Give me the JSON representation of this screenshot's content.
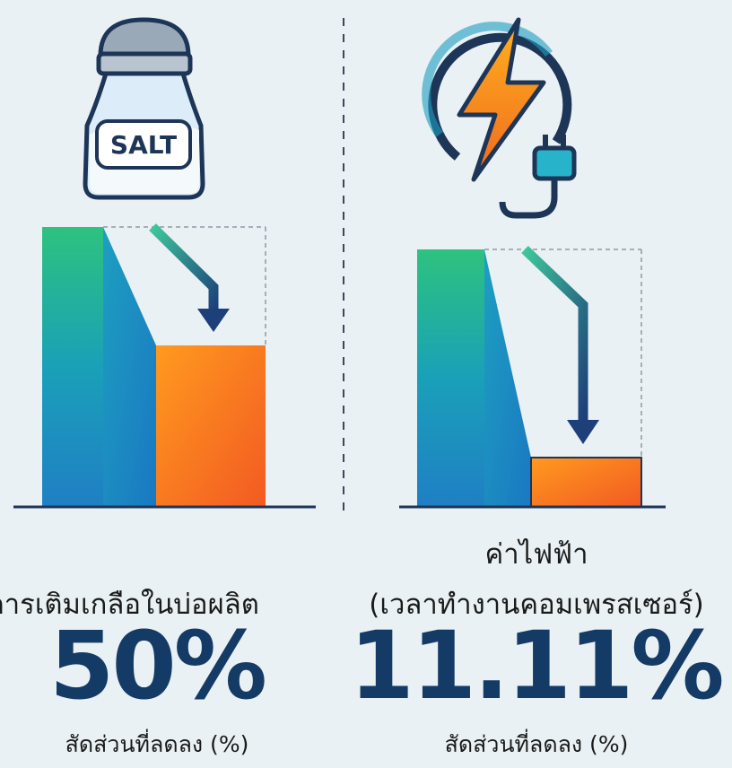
{
  "panels": [
    {
      "icon_label": "SALT",
      "title_lines": [
        "การเติมเกลือในบ่อผลิต"
      ],
      "value": "50%",
      "caption": "สัดส่วนที่ลดลง (%)"
    },
    {
      "title_lines": [
        "ค่าไฟฟ้า",
        "(เวลาทำงานคอมเพรสเซอร์)"
      ],
      "value": "11.11%",
      "caption": "สัดส่วนที่ลดลง (%)"
    }
  ]
}
